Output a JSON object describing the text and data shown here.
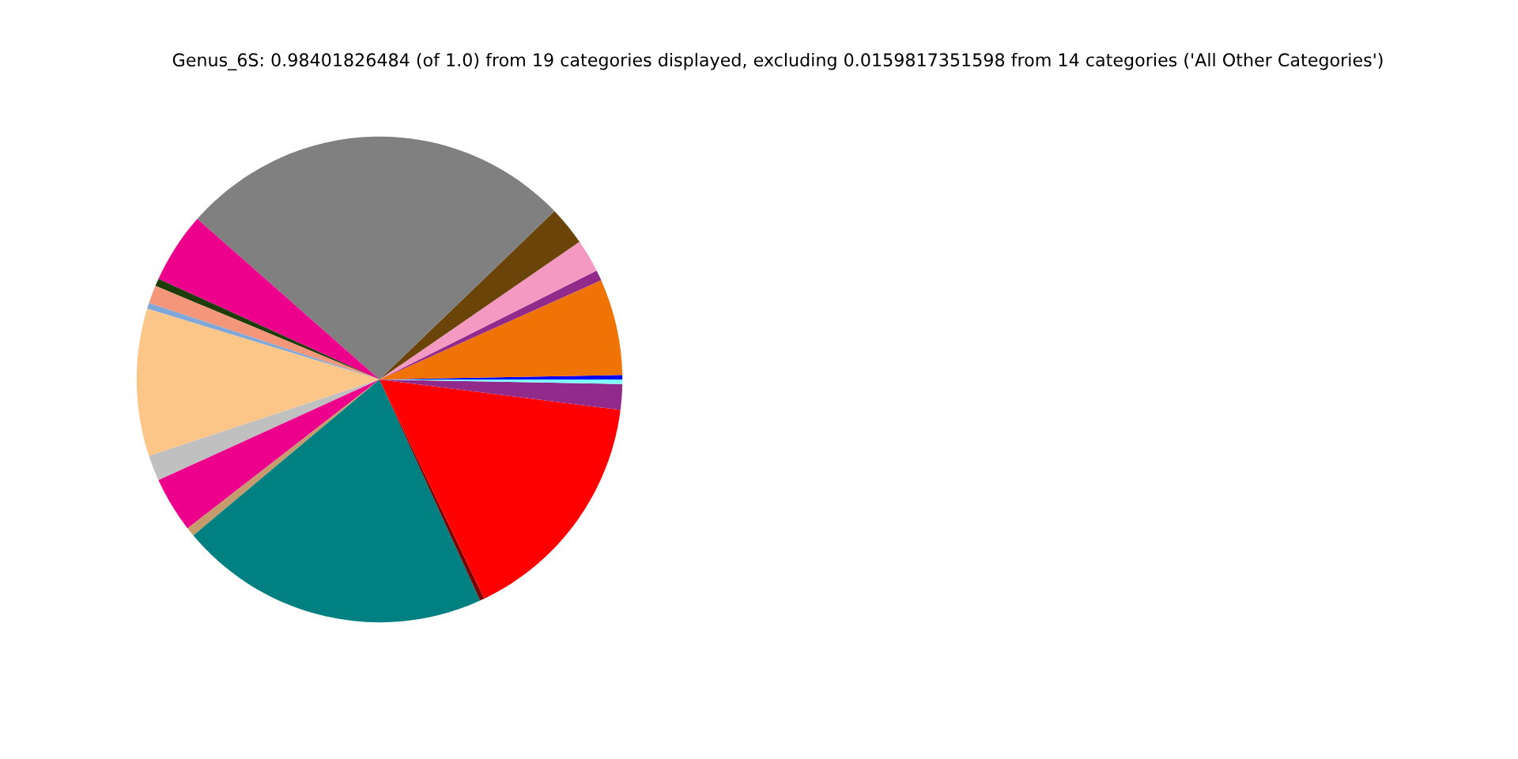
{
  "chart_data": {
    "type": "pie",
    "title": "Genus_6S: 0.98401826484 (of 1.0) from 19 categories displayed, excluding 0.0159817351598 from 14 categories ('All Other Categories')",
    "categories": [
      null,
      null,
      null,
      null,
      null,
      null,
      null,
      null,
      null,
      null,
      null,
      null,
      null,
      null,
      null,
      null,
      null,
      null,
      null
    ],
    "values": [
      0.3,
      6.4,
      0.7,
      2.2,
      2.6,
      26.3,
      4.7,
      0.5,
      1.2,
      0.4,
      9.8,
      1.7,
      3.7,
      0.6,
      20.7,
      0.3,
      15.9,
      1.7,
      0.3
    ],
    "colors": [
      "#0000ff",
      "#f07305",
      "#922a8c",
      "#f49ac2",
      "#6b440a",
      "#808080",
      "#ec008c",
      "#1e3d0a",
      "#f4967a",
      "#7fa7d8",
      "#fdc689",
      "#c0c0c0",
      "#ec008c",
      "#c69c6d",
      "#008080",
      "#7b0000",
      "#ff0000",
      "#922a8c",
      "#7fffff"
    ]
  }
}
